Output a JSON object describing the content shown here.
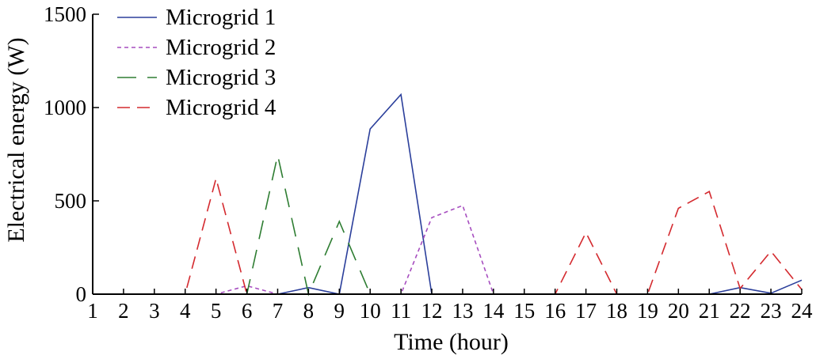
{
  "chart_data": {
    "type": "line",
    "title": "",
    "xlabel": "Time (hour)",
    "ylabel": "Electrical energy (W)",
    "x": [
      1,
      2,
      3,
      4,
      5,
      6,
      7,
      8,
      9,
      10,
      11,
      12,
      13,
      14,
      15,
      16,
      17,
      18,
      19,
      20,
      21,
      22,
      23,
      24
    ],
    "xlim": [
      1,
      24
    ],
    "ylim": [
      0,
      1500
    ],
    "xticks": [
      "1",
      "2",
      "3",
      "4",
      "5",
      "6",
      "7",
      "8",
      "9",
      "10",
      "11",
      "12",
      "13",
      "14",
      "15",
      "16",
      "17",
      "18",
      "19",
      "20",
      "21",
      "22",
      "23",
      "24"
    ],
    "yticks": [
      "0",
      "500",
      "1000",
      "1500"
    ],
    "grid": false,
    "legend_position": "top-left",
    "series": [
      {
        "name": "Microgrid 1",
        "color": "#2b3f9b",
        "dash": "solid",
        "values": [
          0,
          0,
          0,
          0,
          0,
          0,
          0,
          35,
          0,
          885,
          1070,
          0,
          0,
          0,
          0,
          0,
          0,
          0,
          0,
          0,
          0,
          35,
          5,
          75
        ]
      },
      {
        "name": "Microgrid 2",
        "color": "#a64dbf",
        "dash": "dotted",
        "values": [
          0,
          0,
          0,
          0,
          0,
          45,
          0,
          0,
          0,
          0,
          0,
          410,
          475,
          0,
          0,
          0,
          0,
          0,
          0,
          0,
          0,
          0,
          0,
          0
        ]
      },
      {
        "name": "Microgrid 3",
        "color": "#2e7d32",
        "dash": "long-dash",
        "values": [
          0,
          0,
          0,
          0,
          0,
          0,
          745,
          0,
          390,
          0,
          0,
          0,
          0,
          0,
          0,
          0,
          0,
          0,
          0,
          0,
          0,
          0,
          0,
          0
        ]
      },
      {
        "name": "Microgrid 4",
        "color": "#d42a2f",
        "dash": "dashed",
        "values": [
          0,
          0,
          0,
          0,
          620,
          0,
          0,
          0,
          0,
          0,
          0,
          0,
          0,
          0,
          0,
          0,
          330,
          0,
          0,
          460,
          550,
          30,
          230,
          25
        ]
      }
    ]
  }
}
